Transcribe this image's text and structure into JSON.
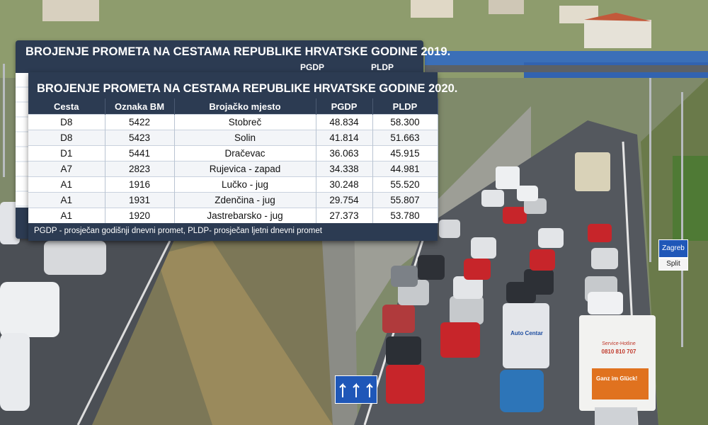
{
  "back_table": {
    "title": "BROJENJE PROMETA NA CESTAMA REPUBLIKE HRVATSKE GODINE 2019.",
    "col_pgdp": "PGDP",
    "col_pldp": "PLDP"
  },
  "front_table": {
    "title": "BROJENJE PROMETA NA CESTAMA REPUBLIKE HRVATSKE GODINE 2020.",
    "columns": [
      "Cesta",
      "Oznaka BM",
      "Brojačko mjesto",
      "PGDP",
      "PLDP"
    ],
    "rows": [
      [
        "D8",
        "5422",
        "Stobreč",
        "48.834",
        "58.300"
      ],
      [
        "D8",
        "5423",
        "Solin",
        "41.814",
        "51.663"
      ],
      [
        "D1",
        "5441",
        "Dračevac",
        "36.063",
        "45.915"
      ],
      [
        "A7",
        "2823",
        "Rujevica - zapad",
        "34.338",
        "44.981"
      ],
      [
        "A1",
        "1916",
        "Lučko - jug",
        "30.248",
        "55.520"
      ],
      [
        "A1",
        "1931",
        "Zdenčina - jug",
        "29.754",
        "55.807"
      ],
      [
        "A1",
        "1920",
        "Jastrebarsko - jug",
        "27.373",
        "53.780"
      ]
    ],
    "footnote": "PGDP - prosječan godišnji dnevni promet, PLDP- prosječan ljetni dnevni promet"
  },
  "photo": {
    "sign_zagreb": "Zagreb",
    "sign_split": "Split",
    "truck_phone": "0810 810 707",
    "truck_service": "Service-Hotline",
    "truck_slogan": "Ganz im Glück!",
    "van_brand": "Auto Centar"
  },
  "colors": {
    "table_header": "#2c3b52",
    "sign_blue": "#1f57b8"
  }
}
